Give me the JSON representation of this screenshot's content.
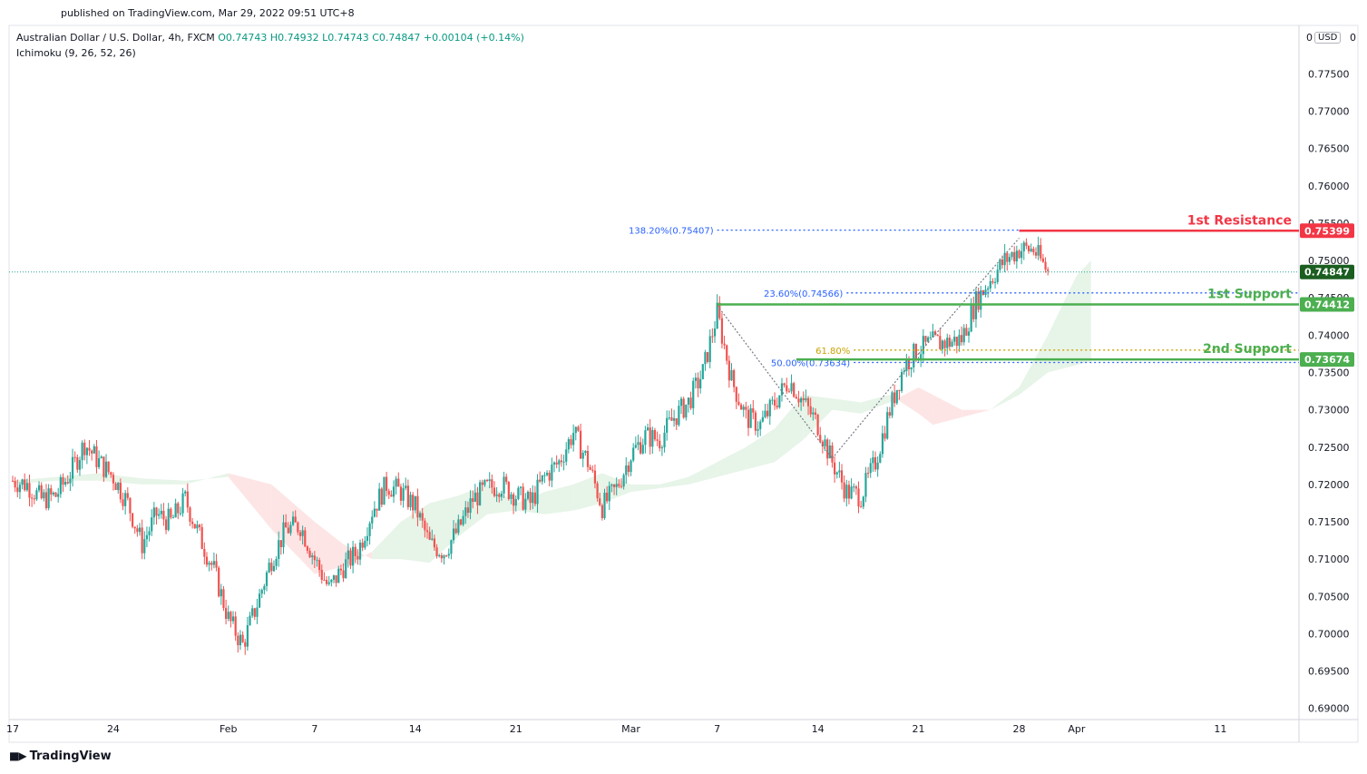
{
  "header": {
    "published": "published on TradingView.com, Mar 29, 2022 09:51 UTC+8",
    "symbol_title": "Australian Dollar / U.S. Dollar, 4h, FXCM",
    "ohlc": {
      "o": "O0.74743",
      "h": "H0.74932",
      "l": "L0.74743",
      "c": "C0.74847",
      "chg": "+0.00104 (+0.14%)"
    },
    "indicator": "Ichimoku (9, 26, 52, 26)",
    "currency": "USD",
    "zero": "0"
  },
  "footer": {
    "brand": "TradingView"
  },
  "colors": {
    "up": "#26a69a",
    "down": "#ef5350",
    "cloud_up": "#e4f3e6",
    "cloud_down": "#fde2e2",
    "resistance": "#f23645",
    "support": "#4caf50",
    "fib_blue": "#2962ff",
    "fib_gold": "#c8a200"
  },
  "chart_data": {
    "type": "candlestick",
    "title": "Australian Dollar / U.S. Dollar, 4h, FXCM",
    "ylim": [
      0.6885,
      0.7815
    ],
    "y_ticks": [
      "0.77500",
      "0.77000",
      "0.76500",
      "0.76000",
      "0.75500",
      "0.75000",
      "0.74500",
      "0.74000",
      "0.73500",
      "0.73000",
      "0.72500",
      "0.72000",
      "0.71500",
      "0.71000",
      "0.70500",
      "0.70000",
      "0.69500",
      "0.69000"
    ],
    "x_ticks": [
      {
        "label": "17",
        "day": 0
      },
      {
        "label": "24",
        "day": 7
      },
      {
        "label": "Feb",
        "day": 15
      },
      {
        "label": "7",
        "day": 21
      },
      {
        "label": "14",
        "day": 28
      },
      {
        "label": "21",
        "day": 35
      },
      {
        "label": "Mar",
        "day": 43
      },
      {
        "label": "7",
        "day": 49
      },
      {
        "label": "14",
        "day": 56
      },
      {
        "label": "21",
        "day": 63
      },
      {
        "label": "28",
        "day": 70
      },
      {
        "label": "Apr",
        "day": 74
      },
      {
        "label": "11",
        "day": 84
      }
    ],
    "close_path": [
      [
        0,
        0.7205
      ],
      [
        1,
        0.72
      ],
      [
        2,
        0.718
      ],
      [
        3,
        0.7185
      ],
      [
        4,
        0.7215
      ],
      [
        5,
        0.7255
      ],
      [
        6,
        0.723
      ],
      [
        7,
        0.721
      ],
      [
        8,
        0.7175
      ],
      [
        9,
        0.712
      ],
      [
        10,
        0.716
      ],
      [
        11,
        0.715
      ],
      [
        12,
        0.718
      ],
      [
        13,
        0.713
      ],
      [
        14,
        0.7085
      ],
      [
        15,
        0.702
      ],
      [
        16,
        0.6985
      ],
      [
        17,
        0.704
      ],
      [
        18,
        0.71
      ],
      [
        19,
        0.714
      ],
      [
        20,
        0.7145
      ],
      [
        21,
        0.71
      ],
      [
        22,
        0.706
      ],
      [
        23,
        0.709
      ],
      [
        24,
        0.711
      ],
      [
        25,
        0.7165
      ],
      [
        26,
        0.72
      ],
      [
        27,
        0.719
      ],
      [
        28,
        0.717
      ],
      [
        29,
        0.712
      ],
      [
        30,
        0.711
      ],
      [
        31,
        0.714
      ],
      [
        32,
        0.718
      ],
      [
        33,
        0.7195
      ],
      [
        34,
        0.72
      ],
      [
        35,
        0.7185
      ],
      [
        36,
        0.7175
      ],
      [
        37,
        0.721
      ],
      [
        38,
        0.723
      ],
      [
        39,
        0.727
      ],
      [
        40,
        0.723
      ],
      [
        41,
        0.717
      ],
      [
        42,
        0.7195
      ],
      [
        43,
        0.724
      ],
      [
        44,
        0.7265
      ],
      [
        45,
        0.726
      ],
      [
        46,
        0.729
      ],
      [
        47,
        0.731
      ],
      [
        48,
        0.735
      ],
      [
        49,
        0.743
      ],
      [
        50,
        0.734
      ],
      [
        51,
        0.729
      ],
      [
        52,
        0.728
      ],
      [
        53,
        0.731
      ],
      [
        54,
        0.734
      ],
      [
        55,
        0.731
      ],
      [
        56,
        0.728
      ],
      [
        57,
        0.723
      ],
      [
        58,
        0.719
      ],
      [
        59,
        0.7185
      ],
      [
        60,
        0.723
      ],
      [
        61,
        0.73
      ],
      [
        62,
        0.736
      ],
      [
        63,
        0.738
      ],
      [
        64,
        0.739
      ],
      [
        65,
        0.739
      ],
      [
        66,
        0.7395
      ],
      [
        67,
        0.7445
      ],
      [
        68,
        0.7475
      ],
      [
        69,
        0.75
      ],
      [
        70,
        0.7515
      ],
      [
        71,
        0.7515
      ],
      [
        72,
        0.7485
      ]
    ],
    "levels": [
      {
        "label": "1st Resistance",
        "value": 0.75399,
        "value_label": "0.75399",
        "color": "#f23645"
      },
      {
        "label": "1st Support",
        "value": 0.74412,
        "value_label": "0.74412",
        "color": "#4caf50"
      },
      {
        "label": "2nd Support",
        "value": 0.73674,
        "value_label": "0.73674",
        "color": "#4caf50"
      }
    ],
    "fib": [
      {
        "label": "138.20%(0.75407)",
        "value": 0.75407,
        "color": "#2962ff"
      },
      {
        "label": "23.60%(0.74566)",
        "value": 0.74566,
        "color": "#2962ff"
      },
      {
        "label": "61.80%",
        "value": 0.738,
        "color": "#c8a200"
      },
      {
        "label": "50.00%(0.73634)",
        "value": 0.73634,
        "color": "#2962ff"
      }
    ],
    "current_price": {
      "value": 0.74847,
      "value_label": "0.74847"
    },
    "cloud": [
      [
        0,
        0.7205,
        0.72
      ],
      [
        3,
        0.721,
        0.7205
      ],
      [
        6,
        0.7215,
        0.7205
      ],
      [
        9,
        0.7208,
        0.72
      ],
      [
        12,
        0.7205,
        0.72
      ],
      [
        15,
        0.721,
        0.7215
      ],
      [
        18,
        0.714,
        0.72
      ],
      [
        21,
        0.708,
        0.715
      ],
      [
        23,
        0.709,
        0.712
      ],
      [
        25,
        0.711,
        0.71
      ],
      [
        27,
        0.715,
        0.71
      ],
      [
        29,
        0.7175,
        0.7095
      ],
      [
        31,
        0.7185,
        0.713
      ],
      [
        33,
        0.72,
        0.716
      ],
      [
        35,
        0.7175,
        0.7165
      ],
      [
        37,
        0.719,
        0.716
      ],
      [
        39,
        0.72,
        0.7165
      ],
      [
        41,
        0.7215,
        0.7175
      ],
      [
        43,
        0.72,
        0.719
      ],
      [
        45,
        0.72,
        0.7195
      ],
      [
        47,
        0.721,
        0.72
      ],
      [
        49,
        0.723,
        0.721
      ],
      [
        51,
        0.725,
        0.722
      ],
      [
        53,
        0.7275,
        0.723
      ],
      [
        55,
        0.732,
        0.726
      ],
      [
        57,
        0.7315,
        0.73
      ],
      [
        59,
        0.731,
        0.7295
      ],
      [
        61,
        0.732,
        0.731
      ],
      [
        63,
        0.7295,
        0.733
      ],
      [
        64,
        0.728,
        0.732
      ],
      [
        66,
        0.729,
        0.73
      ],
      [
        68,
        0.73,
        0.73
      ],
      [
        70,
        0.733,
        0.732
      ],
      [
        72,
        0.74,
        0.735
      ],
      [
        74,
        0.748,
        0.736
      ],
      [
        75,
        0.75,
        0.7365
      ]
    ],
    "pattern_lines": [
      [
        [
          49,
          0.744
        ],
        [
          57,
          0.7235
        ],
        [
          63,
          0.7375
        ],
        [
          70,
          0.753
        ]
      ]
    ]
  }
}
